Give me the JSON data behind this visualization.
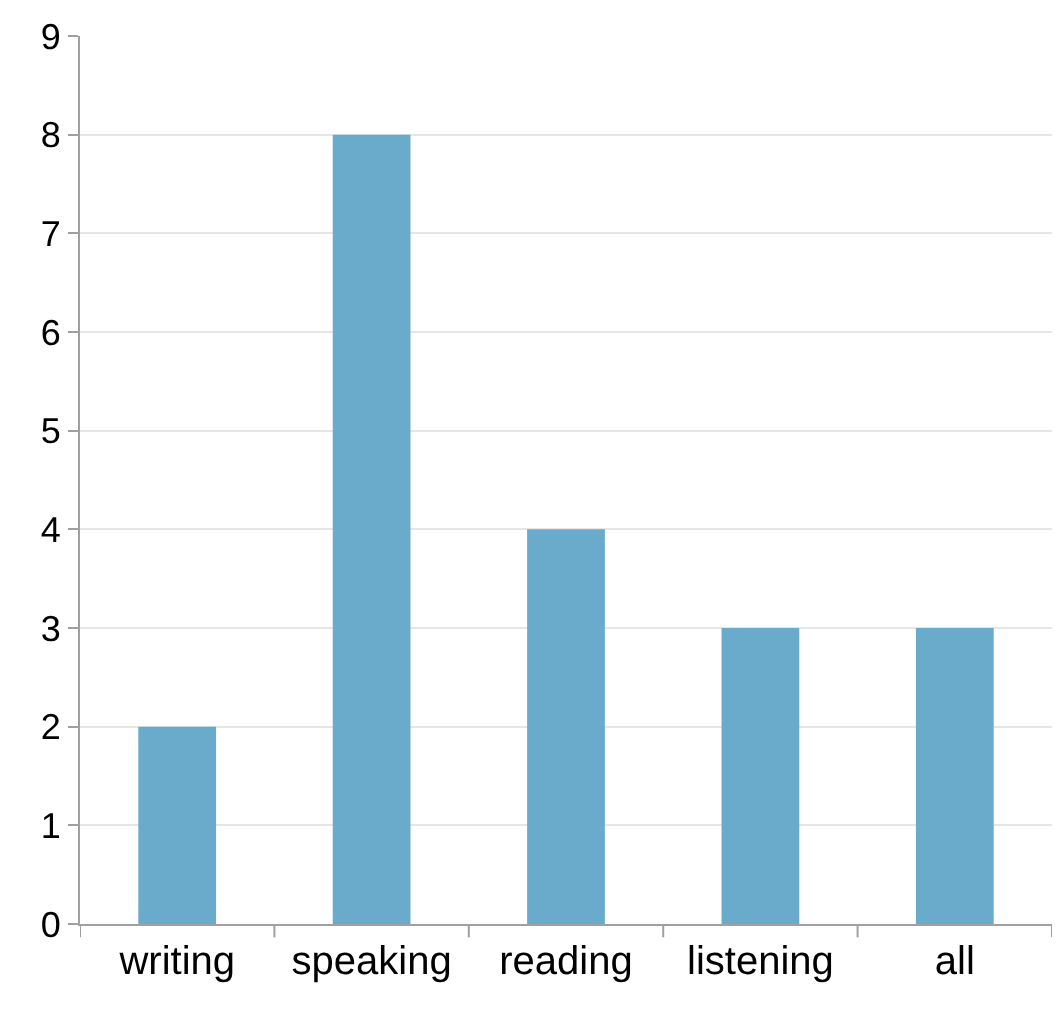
{
  "chart_data": {
    "type": "bar",
    "categories": [
      "writing",
      "speaking",
      "reading",
      "listening",
      "all"
    ],
    "values": [
      2,
      8,
      4,
      3,
      3
    ],
    "color": "#6aabcb",
    "ylim": [
      0,
      9
    ],
    "yticks": [
      0,
      1,
      2,
      3,
      4,
      5,
      6,
      7,
      8,
      9
    ],
    "grid": "y"
  }
}
